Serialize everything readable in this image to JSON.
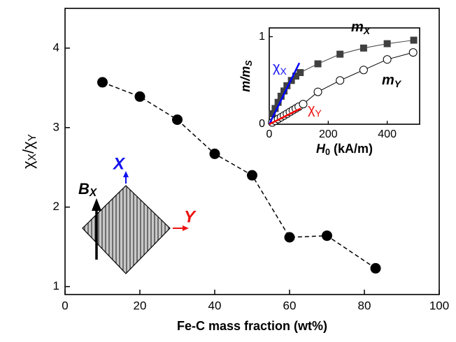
{
  "chart_data": [
    {
      "type": "line",
      "x_label": "Fe-C mass fraction (wt%)",
      "y_label": [
        "χ",
        "X",
        "/χ",
        "Y"
      ],
      "x": [
        10,
        20,
        30,
        40,
        50,
        60,
        70,
        83
      ],
      "values": [
        3.57,
        3.39,
        3.1,
        2.67,
        2.4,
        1.62,
        1.64,
        1.23
      ],
      "color": "#000000",
      "xlim": [
        0,
        100
      ],
      "xticks": [
        0,
        20,
        40,
        60,
        80,
        100
      ],
      "ylim": [
        0.9,
        4.5
      ],
      "yticks": [
        1,
        2,
        3,
        4
      ],
      "diagram_labels": {
        "b": [
          "B",
          "X"
        ],
        "x": "X",
        "y": "Y"
      }
    },
    {
      "type": "scatter",
      "x_label": [
        "H",
        "0",
        " (kA/m)"
      ],
      "y_label": [
        "m/m",
        "S"
      ],
      "xlim": [
        0,
        510
      ],
      "xticks": [
        0,
        200,
        400
      ],
      "ylim": [
        0,
        1.1
      ],
      "yticks": [
        0,
        1
      ],
      "series": [
        {
          "marker": "square",
          "color": "#404040",
          "x": [
            10,
            20,
            30,
            40,
            50,
            60,
            75,
            90,
            105,
            165,
            240,
            320,
            400,
            490
          ],
          "values": [
            0.12,
            0.18,
            0.25,
            0.32,
            0.38,
            0.44,
            0.5,
            0.55,
            0.59,
            0.69,
            0.8,
            0.87,
            0.92,
            0.96
          ]
        },
        {
          "marker": "circle",
          "color": "#000000",
          "x": [
            10,
            20,
            30,
            40,
            50,
            60,
            70,
            80,
            90,
            100,
            115,
            165,
            240,
            320,
            400,
            488
          ],
          "values": [
            0.02,
            0.04,
            0.06,
            0.08,
            0.1,
            0.12,
            0.14,
            0.16,
            0.18,
            0.2,
            0.23,
            0.37,
            0.5,
            0.62,
            0.74,
            0.82
          ]
        },
        {
          "marker": "none",
          "color": "#0000ff",
          "x": [
            0,
            102
          ],
          "values": [
            0,
            0.7
          ]
        },
        {
          "marker": "none",
          "color": "#ff0000",
          "x": [
            0,
            107
          ],
          "values": [
            0,
            0.18
          ]
        }
      ],
      "annotations": {
        "mx": [
          "m",
          "X"
        ],
        "my": [
          "m",
          "Y"
        ],
        "chix": [
          "χ",
          "X"
        ],
        "chiy": [
          "χ",
          "Y"
        ]
      }
    }
  ]
}
